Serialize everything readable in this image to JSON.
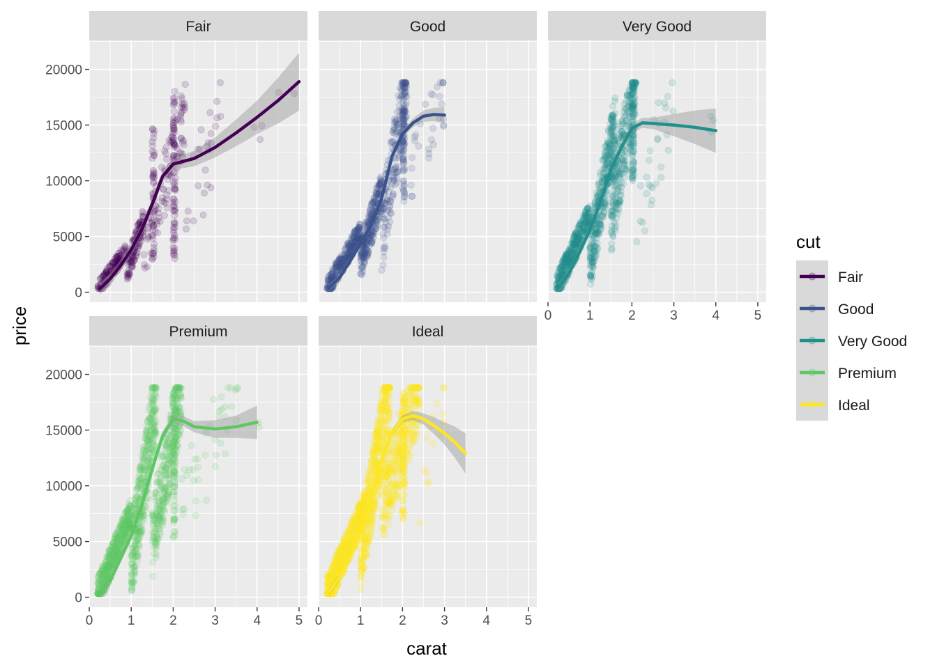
{
  "chart_data": {
    "type": "scatter",
    "facet_by": "cut",
    "xlabel": "carat",
    "ylabel": "price",
    "xlim": [
      0,
      5.2
    ],
    "ylim": [
      -900,
      22600
    ],
    "x_ticks": [
      0,
      1,
      2,
      3,
      4,
      5
    ],
    "y_ticks": [
      0,
      5000,
      10000,
      15000,
      20000
    ],
    "grid": true,
    "legend": {
      "title": "cut",
      "position": "right",
      "entries": [
        {
          "label": "Fair",
          "color": "#440154"
        },
        {
          "label": "Good",
          "color": "#3B528B"
        },
        {
          "label": "Very Good",
          "color": "#21908C"
        },
        {
          "label": "Premium",
          "color": "#5DC863"
        },
        {
          "label": "Ideal",
          "color": "#FDE725"
        }
      ]
    },
    "series": [
      {
        "name": "Fair",
        "color": "#440154",
        "point_opacity": 0.15,
        "smooth": [
          [
            0.25,
            300
          ],
          [
            0.5,
            1200
          ],
          [
            0.75,
            2400
          ],
          [
            1.0,
            3800
          ],
          [
            1.25,
            5600
          ],
          [
            1.5,
            7900
          ],
          [
            1.75,
            10400
          ],
          [
            2.0,
            11500
          ],
          [
            2.5,
            12000
          ],
          [
            3.0,
            13000
          ],
          [
            3.5,
            14300
          ],
          [
            4.0,
            15700
          ],
          [
            4.5,
            17200
          ],
          [
            5.0,
            18900
          ]
        ],
        "band": [
          [
            2.0,
            500
          ],
          [
            3.0,
            900
          ],
          [
            4.0,
            1500
          ],
          [
            5.0,
            2600
          ]
        ],
        "clusters": [
          {
            "x": [
              0.2,
              0.9
            ],
            "y": [
              300,
              3800
            ],
            "n": 140,
            "spread": 700
          },
          {
            "x": [
              0.9,
              1.3
            ],
            "y": [
              2000,
              6500
            ],
            "n": 120,
            "spread": 1200
          },
          {
            "x": [
              1.3,
              2.3
            ],
            "y": [
              3500,
              16000
            ],
            "n": 110,
            "spread": 3000
          },
          {
            "x": [
              2.0,
              2.05
            ],
            "y": [
              3000,
              18700
            ],
            "n": 70,
            "spread": 0
          },
          {
            "x": [
              1.5,
              1.55
            ],
            "y": [
              2500,
              15000
            ],
            "n": 40,
            "spread": 0
          },
          {
            "x": [
              2.3,
              3.2
            ],
            "y": [
              5000,
              18300
            ],
            "n": 25,
            "spread": 5000
          },
          {
            "x": [
              3.8,
              5.0
            ],
            "y": [
              15000,
              18100
            ],
            "n": 5,
            "spread": 2000
          }
        ]
      },
      {
        "name": "Good",
        "color": "#3B528B",
        "point_opacity": 0.15,
        "smooth": [
          [
            0.25,
            400
          ],
          [
            0.5,
            1300
          ],
          [
            0.75,
            2800
          ],
          [
            1.0,
            4400
          ],
          [
            1.25,
            6000
          ],
          [
            1.5,
            8400
          ],
          [
            1.75,
            12200
          ],
          [
            2.0,
            14200
          ],
          [
            2.25,
            15200
          ],
          [
            2.5,
            15800
          ],
          [
            2.75,
            15950
          ],
          [
            3.0,
            15900
          ]
        ],
        "band": [
          [
            2.0,
            300
          ],
          [
            2.5,
            500
          ],
          [
            3.0,
            700
          ]
        ],
        "clusters": [
          {
            "x": [
              0.2,
              1.0
            ],
            "y": [
              350,
              5500
            ],
            "n": 300,
            "spread": 900
          },
          {
            "x": [
              1.0,
              1.5
            ],
            "y": [
              3000,
              9000
            ],
            "n": 260,
            "spread": 1800
          },
          {
            "x": [
              1.5,
              2.1
            ],
            "y": [
              5000,
              18700
            ],
            "n": 200,
            "spread": 3500
          },
          {
            "x": [
              2.0,
              2.05
            ],
            "y": [
              8000,
              18700
            ],
            "n": 70,
            "spread": 0
          },
          {
            "x": [
              2.2,
              3.0
            ],
            "y": [
              10000,
              18600
            ],
            "n": 30,
            "spread": 3500
          }
        ]
      },
      {
        "name": "Very Good",
        "color": "#21908C",
        "point_opacity": 0.15,
        "smooth": [
          [
            0.25,
            400
          ],
          [
            0.5,
            1700
          ],
          [
            0.75,
            3600
          ],
          [
            1.0,
            5600
          ],
          [
            1.25,
            8100
          ],
          [
            1.5,
            11000
          ],
          [
            1.75,
            13000
          ],
          [
            2.0,
            14700
          ],
          [
            2.25,
            15200
          ],
          [
            2.5,
            15150
          ],
          [
            3.0,
            15000
          ],
          [
            3.5,
            14800
          ],
          [
            4.0,
            14500
          ]
        ],
        "band": [
          [
            2.0,
            400
          ],
          [
            2.5,
            500
          ],
          [
            3.0,
            1000
          ],
          [
            4.0,
            2000
          ]
        ],
        "clusters": [
          {
            "x": [
              0.2,
              1.0
            ],
            "y": [
              350,
              7000
            ],
            "n": 400,
            "spread": 1200
          },
          {
            "x": [
              1.0,
              1.6
            ],
            "y": [
              3000,
              15000
            ],
            "n": 350,
            "spread": 2800
          },
          {
            "x": [
              1.5,
              2.1
            ],
            "y": [
              7000,
              18800
            ],
            "n": 260,
            "spread": 3500
          },
          {
            "x": [
              2.0,
              2.05
            ],
            "y": [
              10000,
              18800
            ],
            "n": 80,
            "spread": 0
          },
          {
            "x": [
              2.1,
              3.0
            ],
            "y": [
              6500,
              18200
            ],
            "n": 30,
            "spread": 4000
          },
          {
            "x": [
              3.8,
              4.0
            ],
            "y": [
              14000,
              16000
            ],
            "n": 3,
            "spread": 1000
          }
        ]
      },
      {
        "name": "Premium",
        "color": "#5DC863",
        "point_opacity": 0.15,
        "smooth": [
          [
            0.25,
            400
          ],
          [
            0.5,
            1500
          ],
          [
            0.75,
            3500
          ],
          [
            1.0,
            5500
          ],
          [
            1.25,
            8200
          ],
          [
            1.5,
            11500
          ],
          [
            1.75,
            14500
          ],
          [
            2.0,
            16000
          ],
          [
            2.25,
            15800
          ],
          [
            2.5,
            15300
          ],
          [
            3.0,
            15100
          ],
          [
            3.5,
            15300
          ],
          [
            4.0,
            15700
          ]
        ],
        "band": [
          [
            2.0,
            400
          ],
          [
            2.5,
            500
          ],
          [
            3.0,
            800
          ],
          [
            3.5,
            1000
          ],
          [
            4.0,
            1500
          ]
        ],
        "clusters": [
          {
            "x": [
              0.2,
              1.0
            ],
            "y": [
              350,
              7500
            ],
            "n": 450,
            "spread": 1400
          },
          {
            "x": [
              1.0,
              1.6
            ],
            "y": [
              3000,
              18000
            ],
            "n": 400,
            "spread": 3500
          },
          {
            "x": [
              1.5,
              2.2
            ],
            "y": [
              5000,
              18800
            ],
            "n": 320,
            "spread": 3500
          },
          {
            "x": [
              2.0,
              2.05
            ],
            "y": [
              5000,
              18800
            ],
            "n": 90,
            "spread": 0
          },
          {
            "x": [
              2.2,
              3.6
            ],
            "y": [
              8000,
              18800
            ],
            "n": 40,
            "spread": 4000
          },
          {
            "x": [
              4.0,
              4.1
            ],
            "y": [
              15000,
              15600
            ],
            "n": 2,
            "spread": 500
          }
        ]
      },
      {
        "name": "Ideal",
        "color": "#FDE725",
        "point_opacity": 0.2,
        "smooth": [
          [
            0.25,
            500
          ],
          [
            0.5,
            1800
          ],
          [
            0.75,
            3700
          ],
          [
            1.0,
            6000
          ],
          [
            1.25,
            8900
          ],
          [
            1.5,
            12300
          ],
          [
            1.75,
            14800
          ],
          [
            2.0,
            16000
          ],
          [
            2.25,
            16300
          ],
          [
            2.5,
            16000
          ],
          [
            2.75,
            15400
          ],
          [
            3.0,
            14700
          ],
          [
            3.25,
            13900
          ],
          [
            3.5,
            12900
          ]
        ],
        "band": [
          [
            2.0,
            300
          ],
          [
            2.5,
            500
          ],
          [
            3.0,
            1000
          ],
          [
            3.5,
            1800
          ]
        ],
        "clusters": [
          {
            "x": [
              0.2,
              1.1
            ],
            "y": [
              350,
              8000
            ],
            "n": 500,
            "spread": 1500
          },
          {
            "x": [
              1.0,
              1.7
            ],
            "y": [
              4000,
              18800
            ],
            "n": 450,
            "spread": 3500
          },
          {
            "x": [
              1.5,
              2.4
            ],
            "y": [
              8000,
              18800
            ],
            "n": 320,
            "spread": 3500
          },
          {
            "x": [
              2.0,
              2.05
            ],
            "y": [
              7000,
              18800
            ],
            "n": 80,
            "spread": 0
          },
          {
            "x": [
              2.4,
              3.0
            ],
            "y": [
              9000,
              17800
            ],
            "n": 15,
            "spread": 3000
          }
        ]
      }
    ]
  }
}
